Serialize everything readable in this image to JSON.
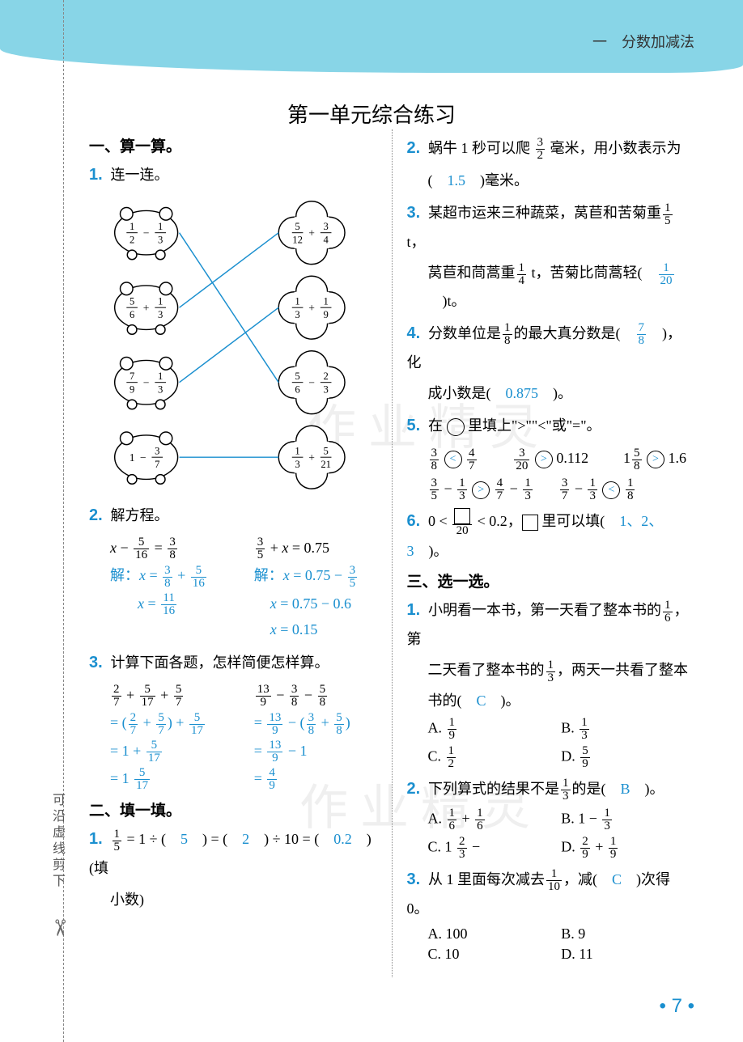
{
  "chapter_label": "一　分数加减法",
  "page_title": "第一单元综合练习",
  "vert_note": "可沿虚线剪下",
  "page_number": "7",
  "colors": {
    "accent": "#1a8fcf",
    "top_bar": "#88d5e7",
    "line_color": "#1a8fcf"
  },
  "left": {
    "sec1": {
      "head": "一、算一算。"
    },
    "q1": {
      "num": "1.",
      "text": "连一连。",
      "pigs_left": [
        {
          "expr_n1": "1",
          "expr_d1": "2",
          "op": "−",
          "expr_n2": "1",
          "expr_d2": "3"
        },
        {
          "expr_n1": "5",
          "expr_d1": "6",
          "op": "+",
          "expr_n2": "1",
          "expr_d2": "3"
        },
        {
          "expr_n1": "7",
          "expr_d1": "9",
          "op": "−",
          "expr_n2": "1",
          "expr_d2": "3"
        },
        {
          "expr_whole": "1",
          "op": "−",
          "expr_n2": "3",
          "expr_d2": "7"
        }
      ],
      "pigs_right": [
        {
          "expr_n1": "5",
          "expr_d1": "12",
          "op": "+",
          "expr_n2": "3",
          "expr_d2": "4"
        },
        {
          "expr_n1": "1",
          "expr_d1": "3",
          "op": "+",
          "expr_n2": "1",
          "expr_d2": "9"
        },
        {
          "expr_n1": "5",
          "expr_d1": "6",
          "op": "−",
          "expr_n2": "2",
          "expr_d2": "3"
        },
        {
          "expr_n1": "1",
          "expr_d1": "3",
          "op": "+",
          "expr_n2": "5",
          "expr_d2": "21"
        }
      ],
      "matches": [
        [
          0,
          2
        ],
        [
          1,
          0
        ],
        [
          2,
          1
        ],
        [
          3,
          3
        ]
      ]
    },
    "q2": {
      "num": "2.",
      "text": "解方程。",
      "eq1": {
        "lhs": "x − 5/16 = 3/8",
        "s1": "解：x = 3/8 + 5/16",
        "s2": "x = 11/16"
      },
      "eq2": {
        "lhs": "3/5 + x = 0.75",
        "s1": "解：x = 0.75 − 3/5",
        "s2": "x = 0.75 − 0.6",
        "s3": "x = 0.15"
      }
    },
    "q3": {
      "num": "3.",
      "text": "计算下面各题，怎样简便怎样算。",
      "c1": {
        "l0": "2/7 + 5/17 + 5/7",
        "l1": "= (2/7 + 5/7) + 5/17",
        "l2": "= 1 + 5/17",
        "l3": "= 1 5/17"
      },
      "c2": {
        "l0": "13/9 − 3/8 − 5/8",
        "l1": "= 13/9 − (3/8 + 5/8)",
        "l2": "= 13/9 − 1",
        "l3": "= 4/9"
      }
    },
    "sec2": {
      "head": "二、填一填。"
    },
    "q2_1": {
      "num": "1.",
      "pre": "1/5 = 1 ÷ (",
      "a1": "5",
      "mid1": ") = (",
      "a2": "2",
      "mid2": ") ÷ 10 = (",
      "a3": "0.2",
      "tail": ")(填小数)"
    }
  },
  "right": {
    "q2_2": {
      "num": "2.",
      "t1": "蜗牛 1 秒可以爬 ",
      "fr_n": "3",
      "fr_d": "2",
      "t2": " 毫米，用小数表示为",
      "t3": "(　",
      "ans": "1.5",
      "t4": "　)毫米。"
    },
    "q2_3": {
      "num": "3.",
      "t1": "某超市运来三种蔬菜，莴苣和苦菊重",
      "f1n": "1",
      "f1d": "5",
      "unit1": " t，",
      "t2": "莴苣和茼蒿重",
      "f2n": "1",
      "f2d": "4",
      "unit2": " t，苦菊比茼蒿轻(　",
      "ans_n": "1",
      "ans_d": "20",
      "t3": "　)t。"
    },
    "q2_4": {
      "num": "4.",
      "t1": "分数单位是",
      "f1n": "1",
      "f1d": "8",
      "t2": "的最大真分数是(　",
      "ans_n": "7",
      "ans_d": "8",
      "t3": "　)，化成小数是(　",
      "ans2": "0.875",
      "t4": "　)。"
    },
    "q2_5": {
      "num": "5.",
      "t1": "在 ◯ 里填上\">\"\"<\"或\"=\"。",
      "row1": [
        {
          "l_n": "3",
          "l_d": "8",
          "cmp": "<",
          "r_n": "4",
          "r_d": "7"
        },
        {
          "l_n": "3",
          "l_d": "20",
          "cmp": ">",
          "r_val": "0.112"
        },
        {
          "l_whole": "1",
          "l_n": "5",
          "l_d": "8",
          "cmp": ">",
          "r_val": "1.6"
        }
      ],
      "row2": [
        {
          "l_n": "3",
          "l_d": "5",
          "op": "−",
          "l2_n": "1",
          "l2_d": "3",
          "cmp": ">",
          "r_n": "4",
          "r_d": "7",
          "op2": "−",
          "r2_n": "1",
          "r2_d": "3"
        },
        {
          "l_n": "3",
          "l_d": "7",
          "op": "−",
          "l2_n": "1",
          "l2_d": "3",
          "cmp": "<",
          "r_n": "1",
          "r_d": "8"
        }
      ]
    },
    "q2_6": {
      "num": "6.",
      "t1": "0 < ",
      "box_d": "20",
      "t2": " < 0.2，",
      "t3": "里可以填(　",
      "ans": "1、2、3",
      "t4": "　)。"
    },
    "sec3": {
      "head": "三、选一选。"
    },
    "q3_1": {
      "num": "1.",
      "t1": "小明看一本书，第一天看了整本书的",
      "f1n": "1",
      "f1d": "6",
      "t2": "，第二天看了整本书的",
      "f2n": "1",
      "f2d": "3",
      "t3": "，两天一共看了整本书的(　",
      "ans": "C",
      "t4": "　)。",
      "A": {
        "l": "A.",
        "n": "1",
        "d": "9"
      },
      "B": {
        "l": "B.",
        "n": "1",
        "d": "3"
      },
      "C": {
        "l": "C.",
        "n": "1",
        "d": "2"
      },
      "D": {
        "l": "D.",
        "n": "5",
        "d": "9"
      }
    },
    "q3_2": {
      "num": "2.",
      "t1": "下列算式的结果不是",
      "fn": "1",
      "fd": "3",
      "t2": "的是(　",
      "ans": "B",
      "t3": "　)。",
      "A": {
        "l": "A.",
        "n1": "1",
        "d1": "6",
        "op": "+",
        "n2": "1",
        "d2": "6"
      },
      "B": {
        "l": "B.",
        "w": "1",
        "op": "−",
        "n": "1",
        "d": "3"
      },
      "C": {
        "l": "C.",
        "w": "1",
        "n1": "2",
        "d1": "3",
        "op": "−"
      },
      "D": {
        "l": "D.",
        "n1": "2",
        "d1": "9",
        "op": "+",
        "n2": "1",
        "d2": "9"
      }
    },
    "q3_3": {
      "num": "3.",
      "t1": "从 1 里面每次减去",
      "fn": "1",
      "fd": "10",
      "t2": "，减(　",
      "ans": "C",
      "t3": "　)次得 0。",
      "A": "A. 100",
      "B": "B. 9",
      "C": "C. 10",
      "D": "D. 11"
    }
  }
}
